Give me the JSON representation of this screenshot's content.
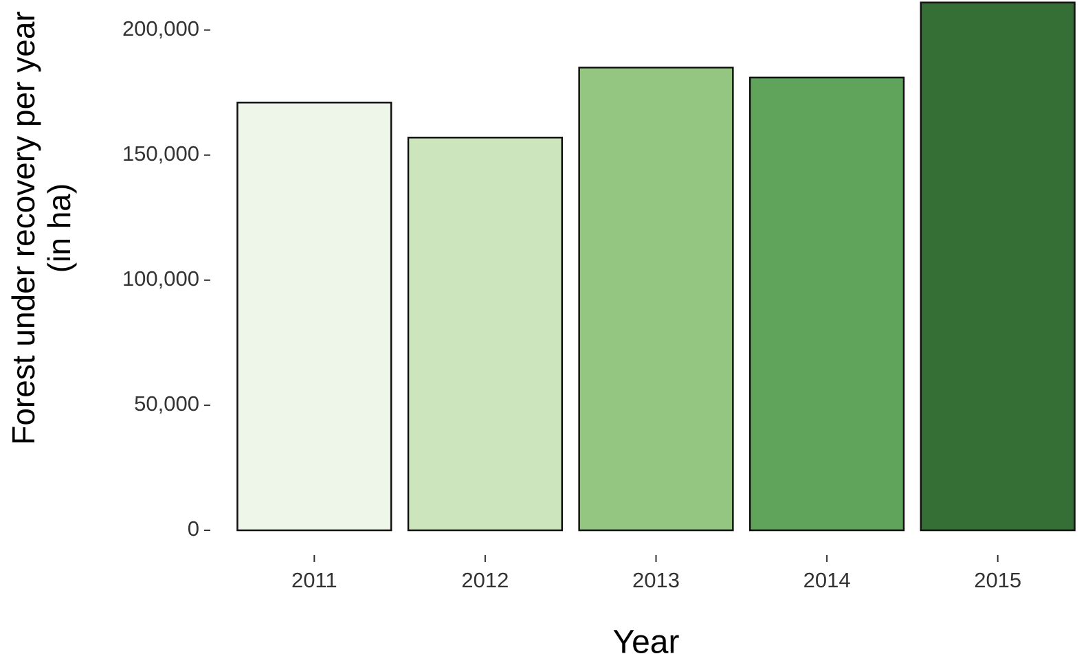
{
  "chart_data": {
    "type": "bar",
    "x_label": "Year",
    "y_label": "Forest under recovery per year (in ha)",
    "categories": [
      "2011",
      "2012",
      "2013",
      "2014",
      "2015"
    ],
    "values": [
      171000,
      157000,
      185000,
      181000,
      211000
    ],
    "colors": [
      "#eef6ea",
      "#cce5bc",
      "#94c581",
      "#60a45c",
      "#356f35"
    ],
    "ylim": [
      0,
      212000
    ],
    "yticks": [
      0,
      {
        "value": 50000,
        "label": "50,000"
      },
      {
        "value": 100000,
        "label": "100,000"
      },
      {
        "value": 150000,
        "label": "150,000"
      },
      {
        "value": 200000,
        "label": "200,000"
      }
    ],
    "grid": false
  }
}
